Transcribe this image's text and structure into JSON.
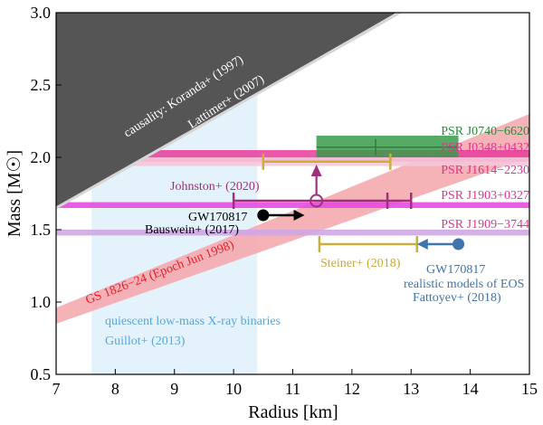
{
  "chart_data": {
    "type": "scatter",
    "xlabel": "Radius [km]",
    "ylabel": "Mass [M☉]",
    "xlim": [
      7,
      15
    ],
    "ylim": [
      0.5,
      3.0
    ],
    "xticks": [
      "7",
      "8",
      "9",
      "10",
      "11",
      "12",
      "13",
      "14",
      "15"
    ],
    "yticks": [
      "0.5",
      "1.0",
      "1.5",
      "2.0",
      "2.5",
      "3.0"
    ],
    "grid": false,
    "legend": "none",
    "regions": [
      {
        "label": "causality: Koranda+ (1997)",
        "label2": "Lattimer+ (2007)",
        "kind": "excluded-region",
        "boundary": [
          [
            7.0,
            1.65
          ],
          [
            12.75,
            3.0
          ]
        ],
        "color": "#555555"
      },
      {
        "label": "quiescent low-mass X-ray binaries",
        "label2": "Guillot+ (2013)",
        "x_range": [
          7.6,
          10.4
        ],
        "y_range": [
          0.5,
          2.45
        ],
        "color": "#e3f2fb"
      },
      {
        "label": "GS 1826−24 (Epoch Jun 1998)",
        "lower": [
          [
            7.0,
            0.85
          ],
          [
            15.0,
            2.0
          ]
        ],
        "upper": [
          [
            7.0,
            0.96
          ],
          [
            15.0,
            2.3
          ]
        ],
        "color": "#f4aaaf"
      }
    ],
    "pulsars": [
      {
        "name": "PSR J0740−6620",
        "mass": 2.07,
        "mass_lo": 2.0,
        "mass_hi": 2.15,
        "r_lo": 11.4,
        "r_hi": 13.8,
        "r_center": 12.4,
        "color": "#3a9b4b"
      },
      {
        "name": "PSR J0348+0432",
        "mass": 2.01,
        "mass_lo": 1.97,
        "mass_hi": 2.05,
        "color": "#e8399a"
      },
      {
        "name": "PSR J1614−2230",
        "mass": 1.97,
        "mass_lo": 1.94,
        "mass_hi": 2.0,
        "color": "#f6c7d8"
      },
      {
        "name": "PSR J1903+0327",
        "mass": 1.667,
        "mass_lo": 1.65,
        "mass_hi": 1.69,
        "color": "#e64be0"
      },
      {
        "name": "PSR J1909−3744",
        "mass": 1.48,
        "mass_lo": 1.46,
        "mass_hi": 1.5,
        "color": "#cfa6e6"
      }
    ],
    "radius_bounds": [
      {
        "label": "Steiner+ (2018)",
        "type": "range",
        "mass": 1.97,
        "x_lo": 10.5,
        "x_hi": 12.65,
        "color": "#c9b03a"
      },
      {
        "label": "Steiner+ (2018)",
        "type": "range",
        "mass": 1.4,
        "x_lo": 11.45,
        "x_hi": 13.1,
        "color": "#c9b03a"
      },
      {
        "label": "Johnston+ (2020)",
        "type": "range",
        "mass": 1.7,
        "x_lo": 10.0,
        "x_hi": 13.0,
        "x_marker": 12.6,
        "color": "#a0307c"
      },
      {
        "label": "Johnston+ (2020)",
        "type": "lower-mass-limit",
        "mass": 1.7,
        "x": 11.4,
        "arrow_to": 1.95,
        "color": "#a0307c"
      },
      {
        "label": "GW170817 Bauswein+ (2017)",
        "type": "lower-radius-limit",
        "mass": 1.6,
        "x_from": 10.5,
        "x_to": 11.2,
        "color": "#000000"
      },
      {
        "label": "GW170817 realistic models of EOS Fattoyev+ (2018)",
        "type": "upper-radius-limit",
        "mass": 1.4,
        "x_from": 13.8,
        "x_to": 13.1,
        "color": "#3f74ad"
      }
    ]
  },
  "labels": {
    "causality_1": "causality: Koranda+ (1997)",
    "causality_2": "Lattimer+ (2007)",
    "qlmxb_1": "quiescent low-mass X-ray binaries",
    "qlmxb_2": "Guillot+ (2013)",
    "gs1826": "GS 1826−24 (Epoch Jun 1998)",
    "j0740": "PSR J0740−6620",
    "j0348": "PSR J0348+0432",
    "j1614": "PSR J1614−2230",
    "j1903": "PSR J1903+0327",
    "j1909": "PSR J1909−3744",
    "johnston": "Johnston+ (2020)",
    "bauswein_1": "GW170817",
    "bauswein_2": "Bauswein+ (2017)",
    "steiner": "Steiner+ (2018)",
    "fattoyev_1": "GW170817",
    "fattoyev_2": "realistic models of EOS",
    "fattoyev_3": "Fattoyev+ (2018)"
  }
}
